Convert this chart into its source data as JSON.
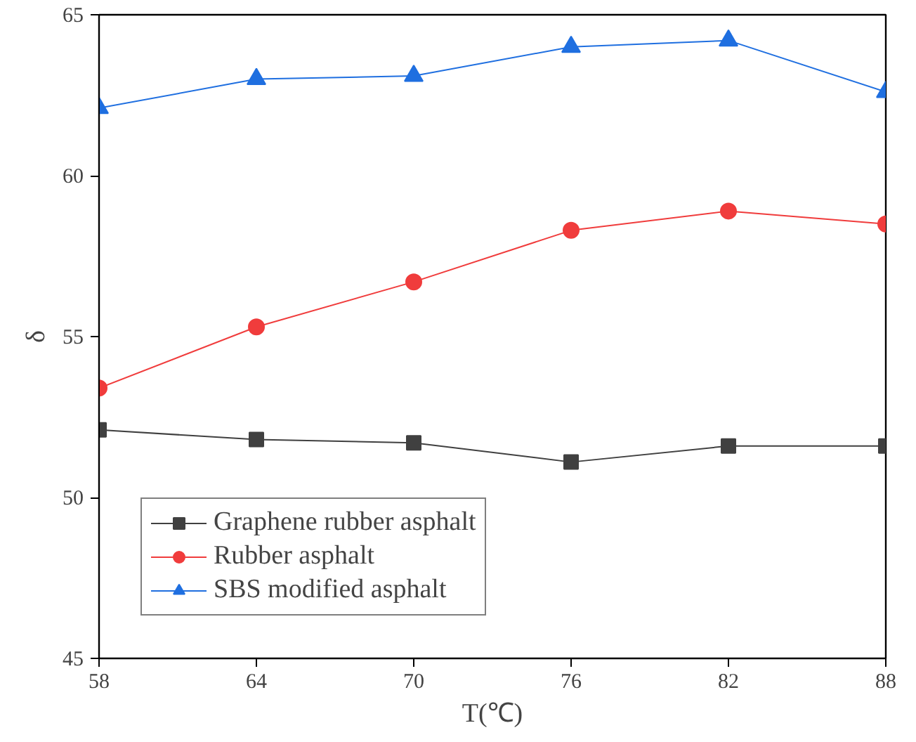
{
  "chart_data": {
    "type": "line",
    "xlabel": "T(℃)",
    "ylabel": "δ",
    "x": [
      58,
      64,
      70,
      76,
      82,
      88
    ],
    "xlim": [
      58,
      88
    ],
    "xticks": [
      58,
      64,
      70,
      76,
      82,
      88
    ],
    "ylim": [
      45,
      65
    ],
    "yticks": [
      45,
      50,
      55,
      60,
      65
    ],
    "grid": false,
    "legend": "bottom left",
    "line_style": "solid",
    "series": [
      {
        "name": "Graphene rubber asphalt",
        "color": "#404040",
        "marker": "square",
        "values": [
          52.1,
          51.8,
          51.7,
          51.1,
          51.6,
          51.6
        ]
      },
      {
        "name": "Rubber asphalt",
        "color": "#f03c3c",
        "marker": "circle",
        "values": [
          53.4,
          55.3,
          56.7,
          58.3,
          58.9,
          58.5
        ]
      },
      {
        "name": "SBS modified asphalt",
        "color": "#1f6fe0",
        "marker": "triangle",
        "values": [
          62.1,
          63.0,
          63.1,
          64.0,
          64.2,
          62.6
        ]
      }
    ]
  }
}
